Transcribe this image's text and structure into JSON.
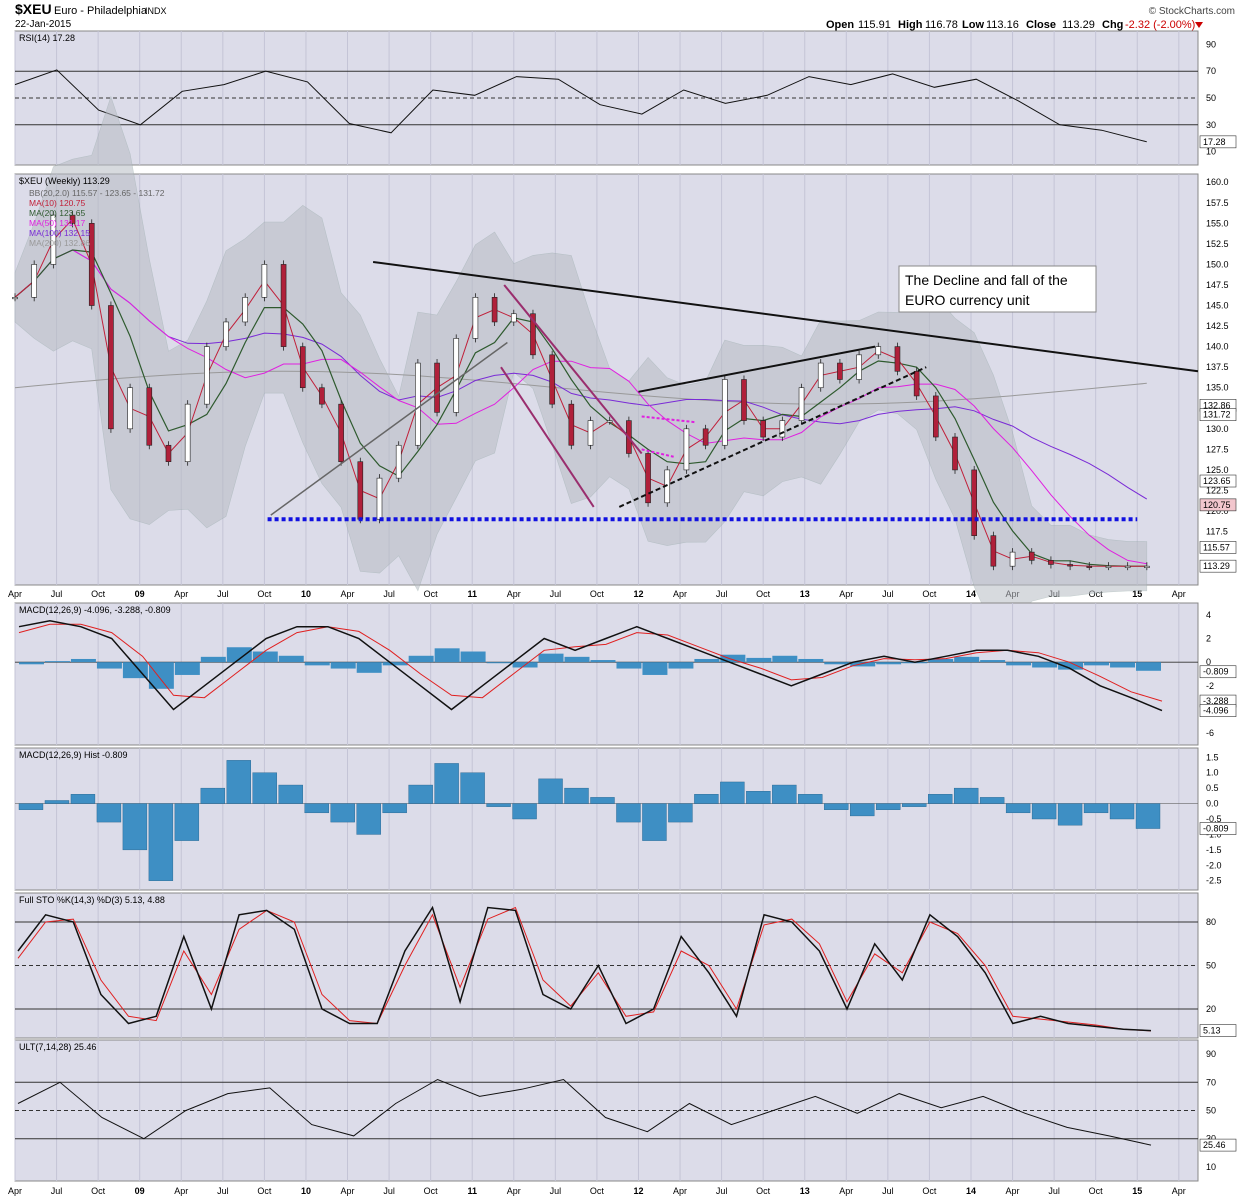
{
  "header": {
    "symbol": "$XEU",
    "name": "Euro - Philadelphia",
    "exchange": "INDX",
    "date": "22-Jan-2015",
    "credit": "© StockCharts.com",
    "open_label": "Open",
    "open": "115.91",
    "high_label": "High",
    "high": "116.78",
    "low_label": "Low",
    "low": "113.16",
    "close_label": "Close",
    "close": "113.29",
    "chg_label": "Chg",
    "chg": "-2.32 (-2.00%)"
  },
  "colors": {
    "background": "#ffffff",
    "panel": "#dcdce9",
    "grid": "#c4c4d6",
    "up_candle": "#ffffff",
    "down_candle": "#b0203a",
    "ma10": "#c0203a",
    "ma20": "#2e5a2e",
    "ma50": "#e020e0",
    "ma100": "#7a2bd6",
    "ma200": "#999999",
    "bb_fill": "#b8bcc4",
    "macd_hist": "#3e8fc4",
    "signal": "#e02020",
    "support": "#1010e0",
    "channel": "#9a2e6e",
    "flag": "#e020e0",
    "trendline": "#111111",
    "rsi_fill": "#8a3a4a"
  },
  "chart_data": [
    {
      "type": "line",
      "id": "rsi",
      "title": "RSI(14) 17.28",
      "ylim": [
        0,
        100
      ],
      "levels": [
        70,
        50,
        30
      ],
      "y_ticks": [
        "90",
        "70",
        "50",
        "30",
        "10"
      ],
      "last_label": "17.28",
      "x": [
        0,
        12,
        24,
        36,
        48,
        60,
        72,
        84,
        96,
        108,
        120,
        132,
        144,
        156,
        168,
        180,
        192,
        204,
        216,
        228,
        240,
        252,
        264,
        276,
        288,
        300,
        312,
        325
      ],
      "series": [
        {
          "name": "RSI(14)",
          "values": [
            60,
            71,
            41,
            30,
            55,
            60,
            70,
            62,
            31,
            24,
            56,
            52,
            66,
            64,
            45,
            38,
            56,
            46,
            52,
            66,
            60,
            68,
            58,
            64,
            48,
            30,
            26,
            17.28
          ]
        }
      ]
    },
    {
      "type": "candlestick",
      "id": "price",
      "title": "$XEU (Weekly) 113.29",
      "ylim": [
        111,
        161
      ],
      "y_ticks": [
        "160.0",
        "157.5",
        "155.0",
        "152.5",
        "150.0",
        "147.5",
        "145.0",
        "142.5",
        "140.0",
        "137.5",
        "135.0",
        "132.5",
        "130.0",
        "127.5",
        "125.0",
        "122.5",
        "120.0",
        "117.5"
      ],
      "legend": [
        "BB(20,2.0) 115.57 - 123.65 - 131.72",
        "MA(10) 120.75",
        "MA(20) 123.65",
        "MA(50) 131.17",
        "MA(100) 132.15",
        "MA(200) 132.86"
      ],
      "x_ticks": [
        "Apr",
        "Jul",
        "Oct",
        "09",
        "Apr",
        "Jul",
        "Oct",
        "10",
        "Apr",
        "Jul",
        "Oct",
        "11",
        "Apr",
        "Jul",
        "Oct",
        "12",
        "Apr",
        "Jul",
        "Oct",
        "13",
        "Apr",
        "Jul",
        "Oct",
        "14",
        "Apr",
        "Jul",
        "Oct",
        "15",
        "Apr"
      ],
      "x_tick_weeks": [
        0,
        13,
        26,
        39,
        52,
        65,
        78,
        91,
        104,
        117,
        130,
        143,
        156,
        169,
        182,
        195,
        208,
        221,
        234,
        247,
        260,
        273,
        286,
        299,
        312,
        325,
        338,
        351,
        364
      ],
      "annotation": "The Decline and fall of the EURO currency unit",
      "right_labels": [
        "132.86",
        "131.72",
        "123.65",
        "120.75",
        "115.57",
        "113.29"
      ],
      "x": [
        0,
        6,
        12,
        18,
        24,
        30,
        36,
        42,
        48,
        54,
        60,
        66,
        72,
        78,
        84,
        90,
        96,
        102,
        108,
        114,
        120,
        126,
        132,
        138,
        144,
        150,
        156,
        162,
        168,
        174,
        180,
        186,
        192,
        198,
        204,
        210,
        216,
        222,
        228,
        234,
        240,
        246,
        252,
        258,
        264,
        270,
        276,
        282,
        288,
        294,
        300,
        306,
        312,
        318,
        324,
        330,
        336,
        342,
        348,
        354
      ],
      "close": [
        146,
        150,
        156,
        155,
        145,
        130,
        135,
        128,
        126,
        133,
        140,
        143,
        146,
        150,
        140,
        135,
        133,
        126,
        119,
        124,
        128,
        138,
        132,
        141,
        146,
        143,
        144,
        139,
        133,
        128,
        131,
        131,
        127,
        121,
        125,
        130,
        128,
        136,
        131,
        129,
        131,
        135,
        138,
        136,
        139,
        140,
        137,
        134,
        129,
        125,
        117,
        113.29,
        115,
        114,
        113.5,
        113.3,
        113.29,
        113.29,
        113.29,
        113.29
      ]
    },
    {
      "type": "line",
      "id": "macd",
      "title": "MACD(12,26,9) -4.096, -3.288, -0.809",
      "ylim": [
        -7,
        5
      ],
      "y_ticks": [
        "4",
        "2",
        "0",
        "-2",
        "-4",
        "-6"
      ],
      "last_labels": [
        "-0.809",
        "-3.288",
        "-4.096"
      ],
      "series": [
        {
          "name": "MACD",
          "values": [
            3,
            3.5,
            3,
            2,
            -1,
            -4,
            -2,
            0,
            2,
            3,
            3,
            2,
            0,
            -2,
            -4,
            -2,
            0,
            2,
            1,
            2,
            3,
            2,
            1,
            0,
            -1,
            -2,
            -1,
            0,
            0.5,
            0,
            0.5,
            1,
            1,
            0.5,
            -0.5,
            -2,
            -3,
            -4.096
          ]
        },
        {
          "name": "Signal",
          "values": [
            2.5,
            3.2,
            3.2,
            2.5,
            0.5,
            -2.8,
            -3,
            -1,
            1,
            2.5,
            3,
            2.6,
            1,
            -1,
            -2.8,
            -3,
            -1,
            1,
            1.3,
            1.5,
            2.5,
            2.3,
            1.3,
            0.3,
            -0.5,
            -1.5,
            -1.3,
            -0.3,
            0.3,
            0.2,
            0.3,
            0.8,
            1,
            0.8,
            0,
            -1.2,
            -2.5,
            -3.288
          ]
        }
      ]
    },
    {
      "type": "bar",
      "id": "macd_hist",
      "title": "MACD(12,26,9) Hist -0.809",
      "ylim": [
        -2.8,
        1.8
      ],
      "y_ticks": [
        "1.5",
        "1.0",
        "0.5",
        "0.0",
        "-0.5",
        "-1.0",
        "-1.5",
        "-2.0",
        "-2.5"
      ],
      "last_label": "-0.809",
      "values": [
        -0.2,
        0.1,
        0.3,
        -0.6,
        -1.5,
        -2.5,
        -1.2,
        0.5,
        1.4,
        1.0,
        0.6,
        -0.3,
        -0.6,
        -1.0,
        -0.3,
        0.6,
        1.3,
        1.0,
        -0.1,
        -0.5,
        0.8,
        0.5,
        0.2,
        -0.6,
        -1.2,
        -0.6,
        0.3,
        0.7,
        0.4,
        0.6,
        0.3,
        -0.2,
        -0.4,
        -0.2,
        -0.1,
        0.3,
        0.5,
        0.2,
        -0.3,
        -0.5,
        -0.7,
        -0.3,
        -0.5,
        -0.809
      ]
    },
    {
      "type": "line",
      "id": "sto",
      "title": "Full STO %K(14,3) %D(3) 5.13, 4.88",
      "ylim": [
        0,
        100
      ],
      "levels": [
        80,
        50,
        20
      ],
      "y_ticks": [
        "80",
        "50",
        "20"
      ],
      "last_label": "5.13",
      "series": [
        {
          "name": "%K",
          "values": [
            60,
            85,
            80,
            30,
            10,
            15,
            70,
            20,
            85,
            88,
            75,
            20,
            10,
            10,
            60,
            90,
            25,
            90,
            88,
            30,
            20,
            50,
            10,
            20,
            70,
            45,
            15,
            85,
            80,
            60,
            20,
            65,
            40,
            85,
            70,
            45,
            10,
            15,
            10,
            8,
            6,
            5.13
          ]
        },
        {
          "name": "%D",
          "values": [
            55,
            80,
            82,
            40,
            15,
            12,
            60,
            30,
            75,
            88,
            80,
            30,
            12,
            10,
            50,
            85,
            35,
            82,
            90,
            40,
            22,
            45,
            15,
            18,
            60,
            50,
            20,
            78,
            82,
            65,
            25,
            58,
            45,
            80,
            72,
            50,
            15,
            13,
            11,
            9,
            6,
            4.88
          ]
        }
      ]
    },
    {
      "type": "line",
      "id": "ult",
      "title": "ULT(7,14,28) 25.46",
      "ylim": [
        0,
        100
      ],
      "levels": [
        70,
        50,
        30
      ],
      "y_ticks": [
        "90",
        "70",
        "50",
        "30",
        "10"
      ],
      "last_label": "25.46",
      "series": [
        {
          "name": "ULT",
          "values": [
            55,
            70,
            45,
            30,
            50,
            62,
            66,
            40,
            32,
            55,
            72,
            60,
            65,
            72,
            45,
            35,
            55,
            40,
            50,
            60,
            48,
            62,
            52,
            60,
            48,
            38,
            32,
            25.46
          ]
        }
      ]
    }
  ]
}
